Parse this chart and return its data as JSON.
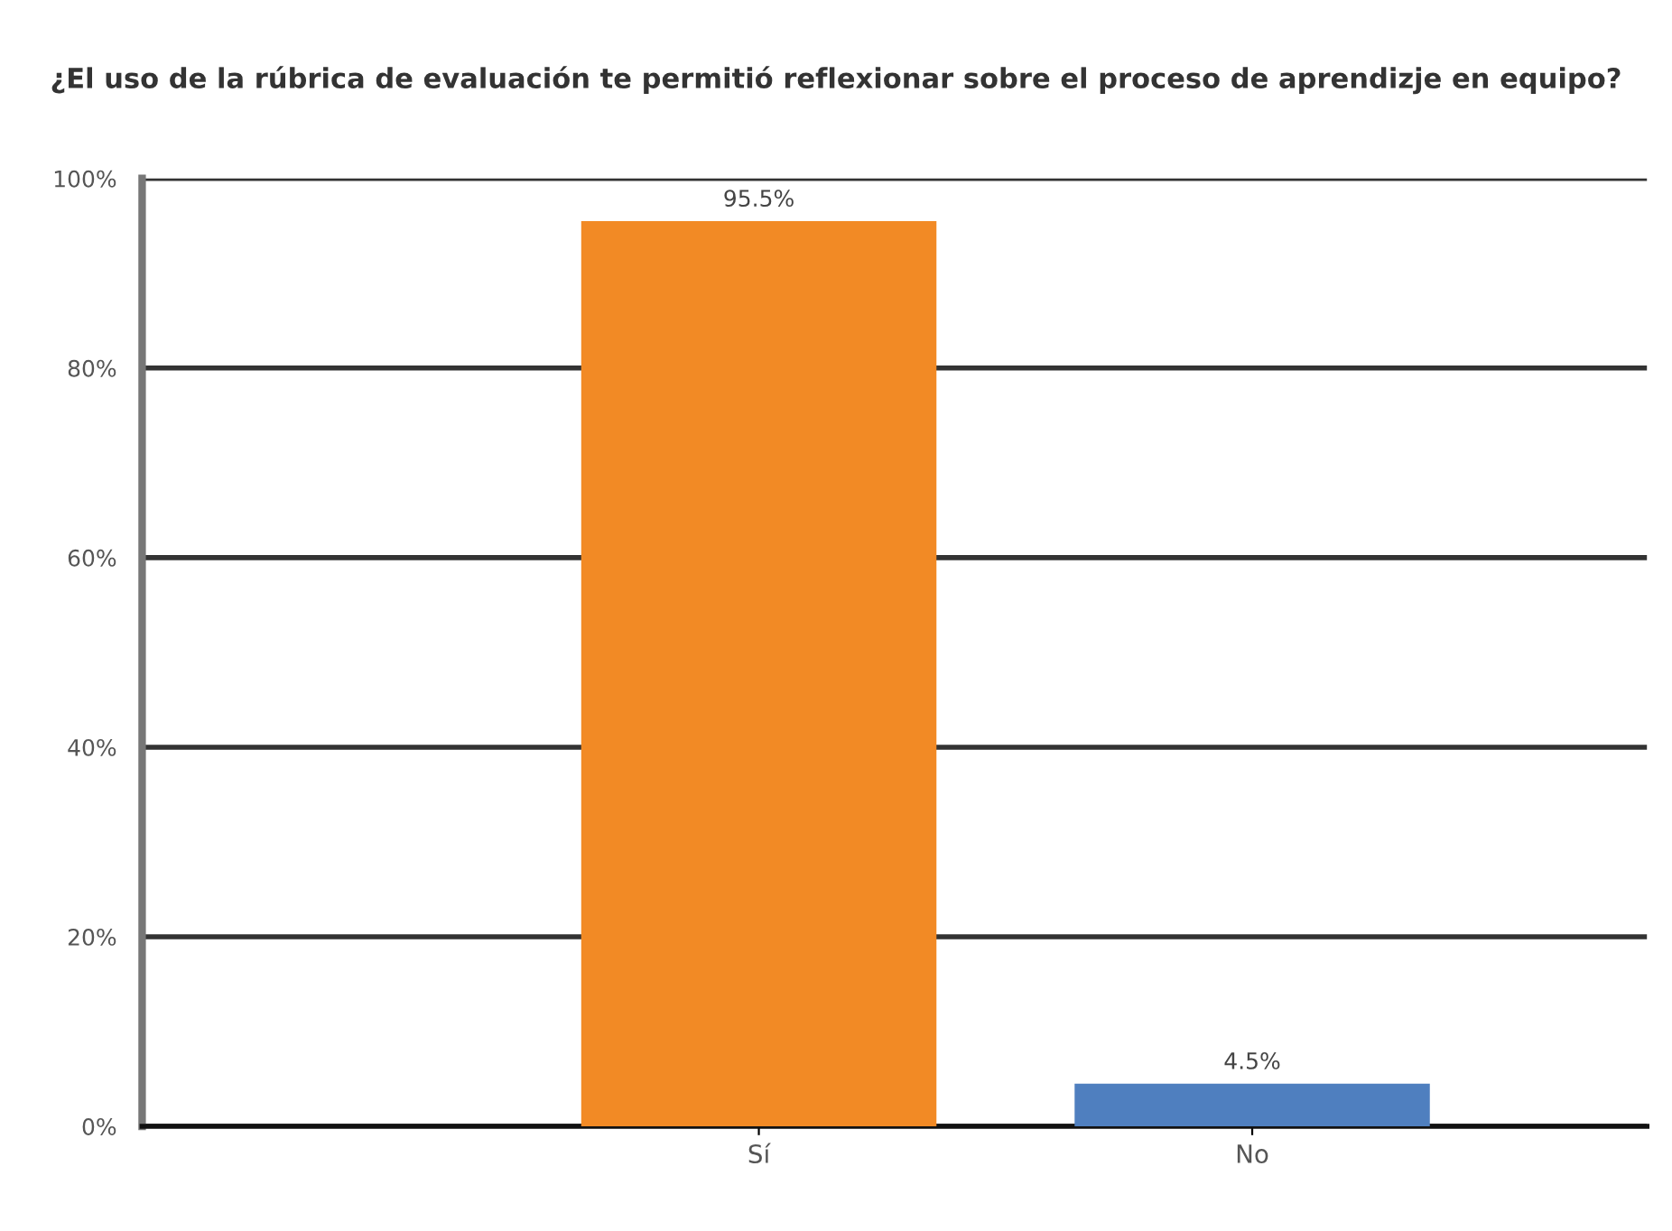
{
  "chart_data": {
    "type": "bar",
    "title": "¿El uso de la rúbrica de evaluación te permitió reflexionar sobre el proceso de aprendizje en equipo?",
    "categories": [
      "Sí",
      "No"
    ],
    "values": [
      95.5,
      4.5
    ],
    "colors": [
      "#f28a25",
      "#4f7fbf"
    ],
    "value_labels": [
      "95.5%",
      "4.5%"
    ],
    "ylim": [
      0,
      100
    ],
    "yticks": [
      {
        "value": 0,
        "label": "0%"
      },
      {
        "value": 20,
        "label": "20%"
      },
      {
        "value": 40,
        "label": "40%"
      },
      {
        "value": 60,
        "label": "60%"
      },
      {
        "value": 80,
        "label": "80%"
      },
      {
        "value": 100,
        "label": "100%"
      }
    ],
    "grid": "y"
  }
}
